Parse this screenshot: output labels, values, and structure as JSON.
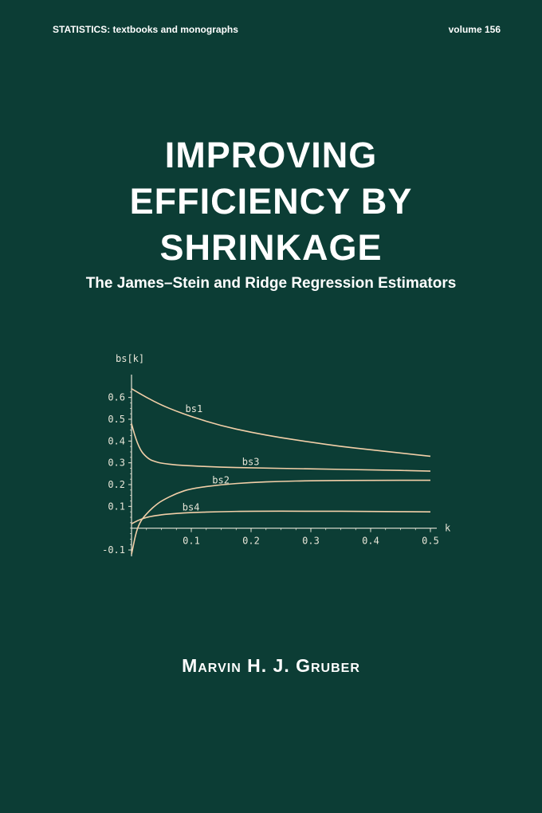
{
  "cover": {
    "series": "STATISTICS:  textbooks and monographs",
    "volume": "volume 156",
    "title_lines": [
      "IMPROVING",
      "EFFICIENCY BY",
      "SHRINKAGE"
    ],
    "subtitle": "The James–Stein and Ridge Regression Estimators",
    "author": "Marvin H. J. Gruber"
  },
  "colors": {
    "background": "#0c3d35",
    "curve": "#f2cfa8",
    "axis": "#e8e6d8"
  },
  "chart_data": {
    "type": "line",
    "ylabel": "bs[k]",
    "xlabel": "k",
    "xlim": [
      0,
      0.5
    ],
    "ylim": [
      -0.1,
      0.65
    ],
    "xticks": [
      "0.1",
      "0.2",
      "0.3",
      "0.4",
      "0.5"
    ],
    "yticks": [
      "-0.1",
      "0.1",
      "0.2",
      "0.3",
      "0.4",
      "0.5",
      "0.6"
    ],
    "series": [
      {
        "name": "bs1",
        "x": [
          0,
          0.025,
          0.05,
          0.075,
          0.1,
          0.15,
          0.2,
          0.25,
          0.3,
          0.35,
          0.4,
          0.45,
          0.5
        ],
        "values": [
          0.64,
          0.6,
          0.565,
          0.537,
          0.512,
          0.47,
          0.44,
          0.415,
          0.395,
          0.375,
          0.36,
          0.345,
          0.33
        ]
      },
      {
        "name": "bs3",
        "x": [
          0,
          0.005,
          0.01,
          0.015,
          0.02,
          0.03,
          0.04,
          0.05,
          0.075,
          0.1,
          0.15,
          0.2,
          0.3,
          0.4,
          0.5
        ],
        "values": [
          0.48,
          0.43,
          0.39,
          0.36,
          0.34,
          0.315,
          0.305,
          0.298,
          0.29,
          0.286,
          0.28,
          0.277,
          0.272,
          0.268,
          0.262
        ]
      },
      {
        "name": "bs2",
        "x": [
          0,
          0.003,
          0.006,
          0.01,
          0.015,
          0.02,
          0.03,
          0.04,
          0.05,
          0.075,
          0.1,
          0.15,
          0.2,
          0.25,
          0.3,
          0.4,
          0.5
        ],
        "values": [
          -0.12,
          -0.08,
          -0.04,
          0.0,
          0.03,
          0.05,
          0.08,
          0.105,
          0.125,
          0.16,
          0.182,
          0.2,
          0.21,
          0.215,
          0.218,
          0.22,
          0.22
        ]
      },
      {
        "name": "bs4",
        "x": [
          0,
          0.01,
          0.02,
          0.03,
          0.05,
          0.075,
          0.1,
          0.15,
          0.2,
          0.3,
          0.4,
          0.5
        ],
        "values": [
          0.02,
          0.035,
          0.045,
          0.053,
          0.062,
          0.068,
          0.072,
          0.076,
          0.078,
          0.078,
          0.077,
          0.075
        ]
      }
    ],
    "label_at_x": {
      "bs1": 0.09,
      "bs3": 0.185,
      "bs2": 0.135,
      "bs4": 0.085
    },
    "grid": false,
    "legend": "none"
  }
}
